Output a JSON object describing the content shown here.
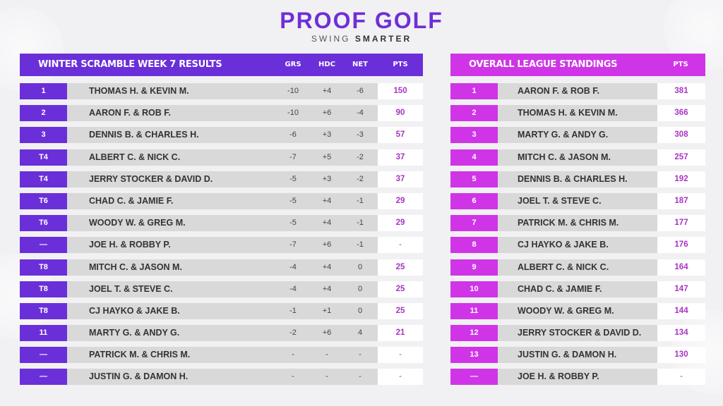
{
  "brand": {
    "title": "PROOF GOLF",
    "sub_light": "SWING",
    "sub_bold": "SMARTER"
  },
  "week": {
    "title": "WINTER SCRAMBLE WEEK 7 RESULTS",
    "columns": {
      "grs": "GRS",
      "hdc": "HDC",
      "net": "NET",
      "pts": "PTS"
    },
    "rows": [
      {
        "rank": "1",
        "team": "THOMAS H. & KEVIN M.",
        "grs": "-10",
        "hdc": "+4",
        "net": "-6",
        "pts": "150"
      },
      {
        "rank": "2",
        "team": "AARON F. & ROB F.",
        "grs": "-10",
        "hdc": "+6",
        "net": "-4",
        "pts": "90"
      },
      {
        "rank": "3",
        "team": "DENNIS B. & CHARLES H.",
        "grs": "-6",
        "hdc": "+3",
        "net": "-3",
        "pts": "57"
      },
      {
        "rank": "T4",
        "team": "ALBERT C. & NICK C.",
        "grs": "-7",
        "hdc": "+5",
        "net": "-2",
        "pts": "37"
      },
      {
        "rank": "T4",
        "team": "JERRY STOCKER & DAVID D.",
        "grs": "-5",
        "hdc": "+3",
        "net": "-2",
        "pts": "37"
      },
      {
        "rank": "T6",
        "team": "CHAD C. & JAMIE F.",
        "grs": "-5",
        "hdc": "+4",
        "net": "-1",
        "pts": "29"
      },
      {
        "rank": "T6",
        "team": "WOODY W. & GREG M.",
        "grs": "-5",
        "hdc": "+4",
        "net": "-1",
        "pts": "29"
      },
      {
        "rank": "—",
        "team": "JOE H. & ROBBY P.",
        "grs": "-7",
        "hdc": "+6",
        "net": "-1",
        "pts": "-"
      },
      {
        "rank": "T8",
        "team": "MITCH C. & JASON M.",
        "grs": "-4",
        "hdc": "+4",
        "net": "0",
        "pts": "25"
      },
      {
        "rank": "T8",
        "team": "JOEL T. & STEVE C.",
        "grs": "-4",
        "hdc": "+4",
        "net": "0",
        "pts": "25"
      },
      {
        "rank": "T8",
        "team": "CJ HAYKO & JAKE B.",
        "grs": "-1",
        "hdc": "+1",
        "net": "0",
        "pts": "25"
      },
      {
        "rank": "11",
        "team": "MARTY G. & ANDY G.",
        "grs": "-2",
        "hdc": "+6",
        "net": "4",
        "pts": "21"
      },
      {
        "rank": "—",
        "team": "PATRICK M. & CHRIS M.",
        "grs": "-",
        "hdc": "-",
        "net": "-",
        "pts": "-"
      },
      {
        "rank": "—",
        "team": "JUSTIN G. & DAMON H.",
        "grs": "-",
        "hdc": "-",
        "net": "-",
        "pts": "-"
      }
    ]
  },
  "standings": {
    "title": "OVERALL LEAGUE STANDINGS",
    "columns": {
      "pts": "PTS"
    },
    "rows": [
      {
        "rank": "1",
        "team": "AARON F. & ROB F.",
        "pts": "381"
      },
      {
        "rank": "2",
        "team": "THOMAS H. & KEVIN M.",
        "pts": "366"
      },
      {
        "rank": "3",
        "team": "MARTY G. & ANDY G.",
        "pts": "308"
      },
      {
        "rank": "4",
        "team": "MITCH C. & JASON M.",
        "pts": "257"
      },
      {
        "rank": "5",
        "team": "DENNIS B. & CHARLES H.",
        "pts": "192"
      },
      {
        "rank": "6",
        "team": "JOEL T. & STEVE C.",
        "pts": "187"
      },
      {
        "rank": "7",
        "team": "PATRICK M. & CHRIS M.",
        "pts": "177"
      },
      {
        "rank": "8",
        "team": "CJ HAYKO & JAKE B.",
        "pts": "176"
      },
      {
        "rank": "9",
        "team": "ALBERT C. & NICK C.",
        "pts": "164"
      },
      {
        "rank": "10",
        "team": "CHAD C. & JAMIE F.",
        "pts": "147"
      },
      {
        "rank": "11",
        "team": "WOODY W. & GREG M.",
        "pts": "144"
      },
      {
        "rank": "12",
        "team": "JERRY STOCKER & DAVID D.",
        "pts": "134"
      },
      {
        "rank": "13",
        "team": "JUSTIN G. & DAMON H.",
        "pts": "130"
      },
      {
        "rank": "—",
        "team": "JOE H. & ROBBY P.",
        "pts": "-"
      }
    ]
  },
  "colors": {
    "purple": "#6a2fd9",
    "magenta": "#cf35e6",
    "points": "#a933c2",
    "row_bg": "#d9d9d9"
  }
}
